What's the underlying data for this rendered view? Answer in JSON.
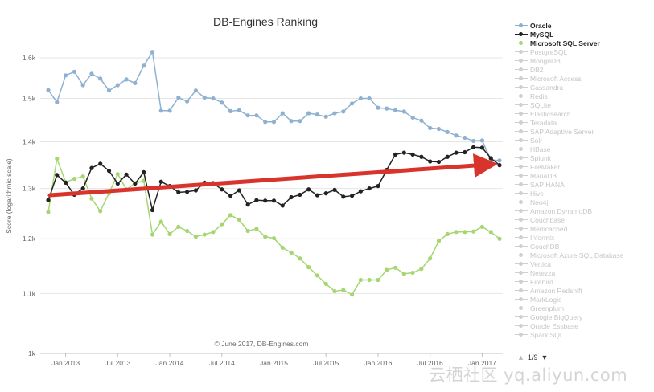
{
  "chart_data": {
    "type": "line",
    "title": "DB-Engines Ranking",
    "ylabel": "Score (logarithmic scale)",
    "y_scale": "log",
    "ylim": [
      1000,
      1900
    ],
    "grid": true,
    "legend_position": "right",
    "y_ticks": [
      {
        "value": 1000,
        "label": "1k"
      },
      {
        "value": 1100,
        "label": "1.1k"
      },
      {
        "value": 1200,
        "label": "1.2k"
      },
      {
        "value": 1300,
        "label": "1.3k"
      },
      {
        "value": 1400,
        "label": "1.4k"
      },
      {
        "value": 1500,
        "label": "1.5k"
      },
      {
        "value": 1600,
        "label": "1.6k"
      }
    ],
    "x_ticks": [
      "Jan 2013",
      "Jul 2013",
      "Jan 2014",
      "Jul 2014",
      "Jan 2015",
      "Jul 2015",
      "Jan 2016",
      "Jul 2016",
      "Jan 2017"
    ],
    "x_start": "2012-11",
    "series": [
      {
        "name": "Oracle",
        "color": "#8fb1d1",
        "values": [
          1520,
          1491,
          1556,
          1565,
          1532,
          1560,
          1548,
          1519,
          1532,
          1546,
          1537,
          1580,
          1615,
          1471,
          1471,
          1502,
          1493,
          1519,
          1502,
          1500,
          1490,
          1470,
          1472,
          1460,
          1460,
          1445,
          1445,
          1465,
          1447,
          1447,
          1465,
          1462,
          1457,
          1465,
          1469,
          1488,
          1500,
          1500,
          1478,
          1476,
          1472,
          1469,
          1455,
          1448,
          1431,
          1429,
          1422,
          1414,
          1409,
          1402,
          1403,
          1360,
          1359
        ]
      },
      {
        "name": "MySQL",
        "color": "#222222",
        "values": [
          1276,
          1328,
          1312,
          1287,
          1300,
          1343,
          1352,
          1337,
          1310,
          1329,
          1310,
          1334,
          1256,
          1314,
          1305,
          1292,
          1293,
          1296,
          1312,
          1311,
          1298,
          1285,
          1296,
          1267,
          1276,
          1275,
          1275,
          1265,
          1282,
          1287,
          1298,
          1286,
          1290,
          1297,
          1283,
          1285,
          1294,
          1300,
          1305,
          1339,
          1372,
          1376,
          1372,
          1367,
          1357,
          1356,
          1367,
          1376,
          1377,
          1388,
          1387,
          1364,
          1349
        ]
      },
      {
        "name": "Microsoft SQL Server",
        "color": "#a6d672",
        "values": [
          1252,
          1363,
          1313,
          1320,
          1325,
          1279,
          1254,
          1290,
          1330,
          1298,
          1311,
          1316,
          1208,
          1233,
          1209,
          1223,
          1215,
          1204,
          1208,
          1213,
          1228,
          1246,
          1237,
          1215,
          1219,
          1204,
          1201,
          1183,
          1174,
          1163,
          1147,
          1132,
          1117,
          1104,
          1106,
          1098,
          1124,
          1124,
          1124,
          1142,
          1146,
          1135,
          1137,
          1144,
          1163,
          1196,
          1209,
          1213,
          1213,
          1214,
          1223,
          1213,
          1200
        ]
      }
    ],
    "inactive_series": [
      "PostgreSQL",
      "MongoDB",
      "DB2",
      "Microsoft Access",
      "Cassandra",
      "Redis",
      "SQLite",
      "Elasticsearch",
      "Teradata",
      "SAP Adaptive Server",
      "Solr",
      "HBase",
      "Splunk",
      "FileMaker",
      "MariaDB",
      "SAP HANA",
      "Hive",
      "Neo4j",
      "Amazon DynamoDB",
      "Couchbase",
      "Memcached",
      "Informix",
      "CouchDB",
      "Microsoft Azure SQL Database",
      "Vertica",
      "Netezza",
      "Firebird",
      "Amazon Redshift",
      "MarkLogic",
      "Greenplum",
      "Google BigQuery",
      "Oracle Essbase",
      "Spark SQL"
    ],
    "annotations": {
      "credit": "© June 2017, DB-Engines.com",
      "trend_arrow_color": "#d9342b"
    }
  },
  "legend": {
    "pager_label": "1/9",
    "up_icon": "triangle-up-icon",
    "down_icon": "triangle-down-icon"
  },
  "watermark": {
    "text": "云栖社区 yq.aliyun.com"
  }
}
